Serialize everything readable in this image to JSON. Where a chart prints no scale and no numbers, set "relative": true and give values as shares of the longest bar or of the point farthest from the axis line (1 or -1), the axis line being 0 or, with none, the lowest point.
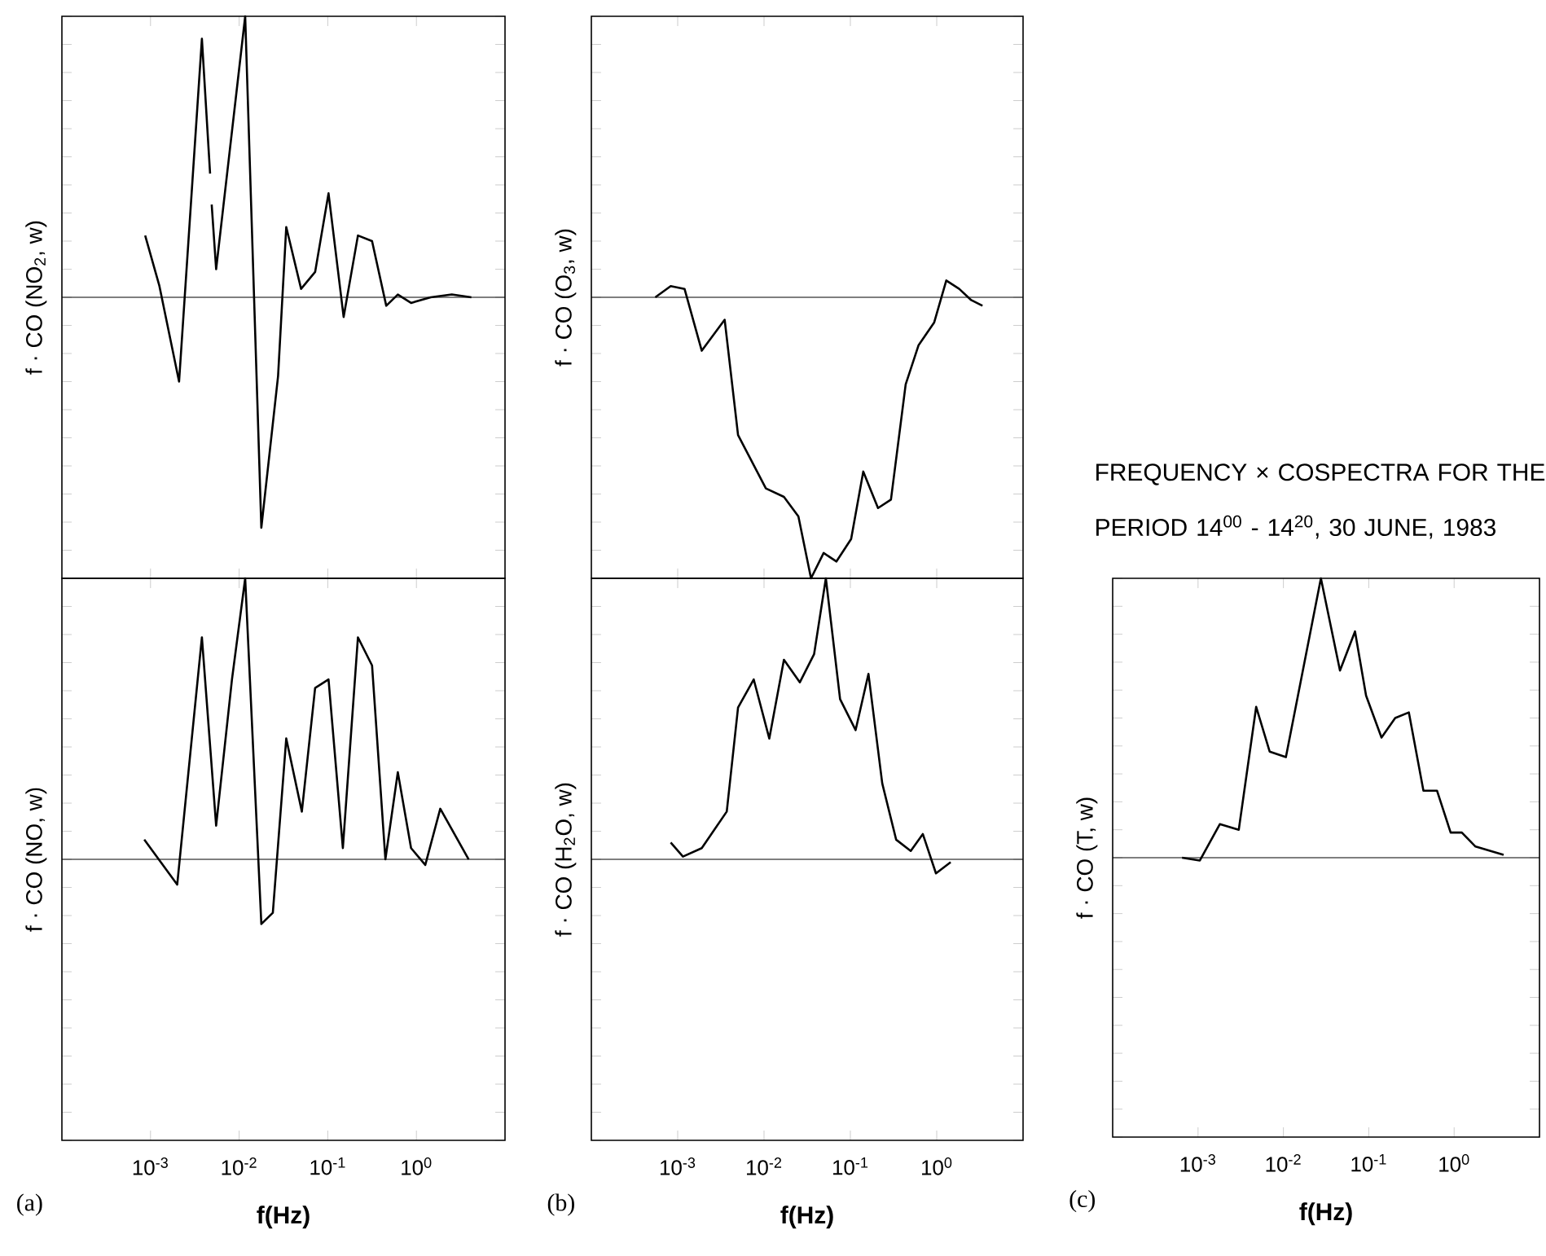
{
  "chart_data": [
    {
      "type": "line",
      "relative": true,
      "log": "x",
      "tick_labels": false,
      "ylabel": "f · CO (NO$_{2}$, w)",
      "xlim": [
        0.0001,
        10
      ],
      "xticks": [
        {
          "value": 0.001,
          "label": null
        },
        {
          "value": 0.01,
          "label": null
        },
        {
          "value": 0.1,
          "label": null
        },
        {
          "value": 1,
          "label": null
        }
      ],
      "x": [
        0.00087,
        0.00126,
        0.0021,
        0.0038,
        0.0047,
        0.0048,
        0.0049,
        0.0055,
        0.0117,
        0.0178,
        0.0275,
        0.034,
        0.05,
        0.072,
        0.102,
        0.151,
        0.219,
        0.316,
        0.457,
        0.617,
        0.871,
        1.45,
        2.51,
        4.17
      ],
      "series": [
        {
          "color": "#000000",
          "values": [
            0.22,
            0.04,
            -0.3,
            0.92,
            0.44,
            null,
            0.33,
            0.1,
            1.0,
            -0.82,
            -0.28,
            0.25,
            0.03,
            0.09,
            0.37,
            -0.07,
            0.22,
            0.2,
            -0.03,
            0.01,
            -0.02,
            0,
            0.01,
            0
          ]
        }
      ]
    },
    {
      "type": "line",
      "relative": true,
      "log": "x",
      "tick_labels": "x",
      "ylabel": "f · CO (NO, w)",
      "xlabel": "f(Hz)",
      "annotations": [
        "(a)"
      ],
      "xlim": [
        0.0001,
        10
      ],
      "xticks": [
        {
          "value": 0.001,
          "label": "10$^{-3}$"
        },
        {
          "value": 0.01,
          "label": "10$^{-2}$"
        },
        {
          "value": 0.1,
          "label": "10$^{-1}$"
        },
        {
          "value": 1,
          "label": "10$^{0}$"
        }
      ],
      "x": [
        0.00085,
        0.002,
        0.0038,
        0.0055,
        0.0083,
        0.0117,
        0.0178,
        0.024,
        0.034,
        0.051,
        0.072,
        0.102,
        0.148,
        0.219,
        0.316,
        0.447,
        0.617,
        0.871,
        1.26,
        1.86,
        3.89
      ],
      "series": [
        {
          "color": "#000000",
          "values": [
            0.07,
            -0.09,
            0.79,
            0.12,
            0.64,
            1.0,
            -0.23,
            -0.19,
            0.43,
            0.17,
            0.61,
            0.64,
            0.04,
            0.79,
            0.69,
            0,
            0.31,
            0.04,
            -0.02,
            0.18,
            0
          ]
        }
      ]
    },
    {
      "type": "line",
      "relative": true,
      "log": "x",
      "tick_labels": false,
      "ylabel": "f · CO (O$_{3}$, w)",
      "xlim": [
        0.0001,
        10
      ],
      "xticks": [
        {
          "value": 0.001,
          "label": null
        },
        {
          "value": 0.01,
          "label": null
        },
        {
          "value": 0.1,
          "label": null
        },
        {
          "value": 1,
          "label": null
        }
      ],
      "x": [
        0.00055,
        0.00083,
        0.0012,
        0.0019,
        0.0035,
        0.005,
        0.0105,
        0.017,
        0.025,
        0.035,
        0.049,
        0.069,
        0.102,
        0.141,
        0.209,
        0.295,
        0.437,
        0.617,
        0.933,
        1.29,
        1.82,
        2.51,
        3.39
      ],
      "series": [
        {
          "color": "#000000",
          "values": [
            0,
            0.04,
            0.03,
            -0.19,
            -0.08,
            -0.49,
            -0.68,
            -0.71,
            -0.78,
            -1.0,
            -0.91,
            -0.94,
            -0.86,
            -0.62,
            -0.75,
            -0.72,
            -0.31,
            -0.17,
            -0.09,
            0.06,
            0.03,
            -0.01,
            -0.03
          ]
        }
      ]
    },
    {
      "type": "line",
      "relative": true,
      "log": "x",
      "tick_labels": "x",
      "ylabel": "f · CO (H$_{2}$O, w)",
      "xlabel": "f(Hz)",
      "annotations": [
        "(b)"
      ],
      "xlim": [
        0.0001,
        10
      ],
      "xticks": [
        {
          "value": 0.001,
          "label": "10$^{-3}$"
        },
        {
          "value": 0.01,
          "label": "10$^{-2}$"
        },
        {
          "value": 0.1,
          "label": "10$^{-1}$"
        },
        {
          "value": 1,
          "label": "10$^{0}$"
        }
      ],
      "x": [
        0.00083,
        0.00115,
        0.0019,
        0.0037,
        0.005,
        0.0076,
        0.0115,
        0.017,
        0.026,
        0.038,
        0.052,
        0.076,
        0.115,
        0.162,
        0.234,
        0.339,
        0.5,
        0.69,
        0.98,
        1.45
      ],
      "series": [
        {
          "color": "#000000",
          "values": [
            0.06,
            0.01,
            0.04,
            0.17,
            0.54,
            0.64,
            0.43,
            0.71,
            0.63,
            0.73,
            1.0,
            0.57,
            0.46,
            0.66,
            0.27,
            0.07,
            0.03,
            0.09,
            -0.05,
            -0.01
          ]
        }
      ]
    },
    {
      "type": "line",
      "relative": true,
      "log": "x",
      "tick_labels": "x",
      "title": "FREQUENCY × COSPECTRA FOR THE PERIOD 14$^{00}$ - 14$^{20}$, 30 JUNE, 1983",
      "ylabel": "f · CO (T, w)",
      "xlabel": "f(Hz)",
      "annotations": [
        "(c)"
      ],
      "xlim": [
        0.0001,
        10
      ],
      "xticks": [
        {
          "value": 0.001,
          "label": "10$^{-3}$"
        },
        {
          "value": 0.01,
          "label": "10$^{-2}$"
        },
        {
          "value": 0.1,
          "label": "10$^{-1}$"
        },
        {
          "value": 1,
          "label": "10$^{0}$"
        }
      ],
      "x": [
        0.00065,
        0.00105,
        0.0018,
        0.003,
        0.0048,
        0.0069,
        0.0107,
        0.0275,
        0.046,
        0.069,
        0.093,
        0.141,
        0.204,
        0.295,
        0.437,
        0.63,
        0.91,
        1.23,
        1.78,
        3.8
      ],
      "series": [
        {
          "color": "#000000",
          "values": [
            0,
            -0.01,
            0.12,
            0.1,
            0.54,
            0.38,
            0.36,
            1.0,
            0.67,
            0.81,
            0.58,
            0.43,
            0.5,
            0.52,
            0.24,
            0.24,
            0.09,
            0.09,
            0.04,
            0.01
          ]
        }
      ]
    }
  ]
}
